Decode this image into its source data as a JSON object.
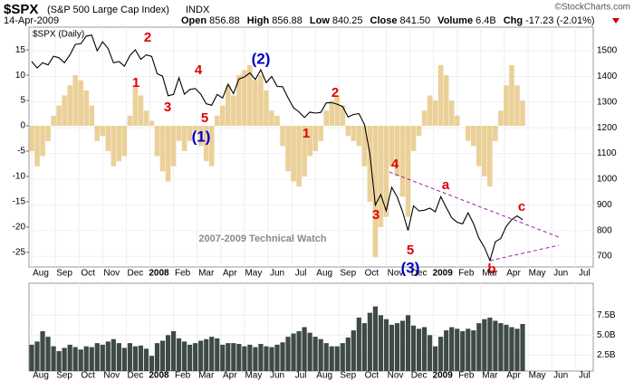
{
  "chart_data": {
    "type": "stock",
    "symbol": "$SPX",
    "name": "(S&P 500 Large Cap Index)",
    "exchange": "INDX",
    "copyright": "©StockCharts.com",
    "date": "14-Apr-2009",
    "quote": [
      {
        "label": "Open",
        "value": "856.88"
      },
      {
        "label": "High",
        "value": "856.88"
      },
      {
        "label": "Low",
        "value": "840.25"
      },
      {
        "label": "Close",
        "value": "841.50"
      },
      {
        "label": "Volume",
        "value": "6.4B"
      },
      {
        "label": "Chg",
        "value": "-17.23 (-2.01%)"
      }
    ],
    "price_legend": "$SPX (Daily)",
    "watermark": "2007-2009 Technical Watch",
    "xticks": [
      "Aug",
      "Sep",
      "Oct",
      "Nov",
      "Dec",
      "2008",
      "Feb",
      "Mar",
      "Apr",
      "May",
      "Jun",
      "Jul",
      "Aug",
      "Sep",
      "Oct",
      "Nov",
      "Dec",
      "2009",
      "Feb",
      "Mar",
      "Apr",
      "May",
      "Jun",
      "Jul"
    ],
    "ylim": [
      -27.9,
      19.5
    ],
    "yticks": [
      15,
      10,
      5,
      0,
      -5,
      -10,
      -15,
      -20,
      -25
    ],
    "y2lim": [
      658,
      1592
    ],
    "y2ticks": [
      1500,
      1400,
      1300,
      1200,
      1100,
      1000,
      900,
      800,
      700
    ],
    "vlim": [
      0.5,
      11.5
    ],
    "vticks": [
      {
        "value": 7.5,
        "label": "7.5B"
      },
      {
        "value": 5.0,
        "label": "5.0B"
      },
      {
        "value": 2.5,
        "label": "2.5B"
      }
    ],
    "series": [
      {
        "name": "Price",
        "axis": "y2",
        "color": "#000000",
        "values": [
          1458,
          1433,
          1453,
          1445,
          1479,
          1473,
          1453,
          1484,
          1525,
          1527,
          1557,
          1561,
          1500,
          1535,
          1509,
          1453,
          1458,
          1440,
          1481,
          1504,
          1467,
          1484,
          1478,
          1411,
          1401,
          1325,
          1330,
          1395,
          1331,
          1349,
          1353,
          1331,
          1294,
          1288,
          1330,
          1316,
          1370,
          1333,
          1390,
          1398,
          1414,
          1388,
          1426,
          1376,
          1400,
          1361,
          1360,
          1317,
          1278,
          1262,
          1240,
          1261,
          1257,
          1260,
          1297,
          1298,
          1292,
          1283,
          1242,
          1252,
          1255,
          1213,
          1099,
          899,
          940,
          877,
          968,
          931,
          873,
          800,
          896,
          876,
          879,
          887,
          873,
          932,
          890,
          850,
          832,
          826,
          869,
          827,
          770,
          735,
          683,
          756,
          769,
          816,
          842,
          857,
          842
        ]
      },
      {
        "name": "Oscillator",
        "axis": "y",
        "color": "#e8c987",
        "values": [
          -5,
          -8,
          -6,
          -3,
          2,
          4,
          6,
          8,
          10,
          9,
          7,
          4,
          -3,
          -2,
          -5,
          -8,
          -7,
          -6,
          2,
          8,
          6,
          3,
          1,
          -6,
          -9,
          -11,
          -8,
          -3,
          -5,
          -3,
          -1,
          -4,
          -7,
          -8,
          2,
          4,
          8,
          6,
          10,
          11,
          12,
          9,
          10,
          7,
          3,
          2,
          -4,
          -9,
          -11,
          -12,
          -10,
          -6,
          -5,
          -3,
          3,
          5,
          6,
          4,
          -2,
          -3,
          -4,
          -8,
          -15,
          -26,
          -20,
          -18,
          -8,
          -10,
          -14,
          -18,
          -5,
          -2,
          3,
          6,
          5,
          12,
          10,
          5,
          2,
          0,
          -3,
          -4,
          -8,
          -10,
          -12,
          -3,
          3,
          8,
          12,
          8,
          5
        ]
      },
      {
        "name": "Volume",
        "axis": "v",
        "color": "#3e4a45",
        "values": [
          3.8,
          4.2,
          5.5,
          4.8,
          3.6,
          3.0,
          3.4,
          3.8,
          3.5,
          3.2,
          3.6,
          3.5,
          4.0,
          3.8,
          4.2,
          4.5,
          4.0,
          3.4,
          4.0,
          3.6,
          3.7,
          3.3,
          2.4,
          4.0,
          4.3,
          5.0,
          5.5,
          4.6,
          4.2,
          3.8,
          4.0,
          4.3,
          4.5,
          4.8,
          4.6,
          3.8,
          4.0,
          4.0,
          3.9,
          3.6,
          3.8,
          3.5,
          3.9,
          3.6,
          3.5,
          3.8,
          4.1,
          4.8,
          5.2,
          5.5,
          6.0,
          5.3,
          4.8,
          4.5,
          4.0,
          3.6,
          3.6,
          4.0,
          4.7,
          5.6,
          7.2,
          6.5,
          7.8,
          8.6,
          7.5,
          7.0,
          6.3,
          6.5,
          6.8,
          7.5,
          6.2,
          5.8,
          6.0,
          5.0,
          3.6,
          4.8,
          5.6,
          6.0,
          5.8,
          5.5,
          5.8,
          5.6,
          6.5,
          7.0,
          7.2,
          6.8,
          6.5,
          6.3,
          6.0,
          5.8,
          6.4
        ]
      }
    ],
    "annotations": [
      {
        "text": "2",
        "color": "#e00000"
      },
      {
        "text": "1",
        "color": "#e00000"
      },
      {
        "text": "3",
        "color": "#e00000"
      },
      {
        "text": "4",
        "color": "#e00000"
      },
      {
        "text": "5",
        "color": "#e00000"
      },
      {
        "text": "(1)",
        "color": "#0000cc"
      },
      {
        "text": "(2)",
        "color": "#0000cc"
      },
      {
        "text": "1",
        "color": "#e00000"
      },
      {
        "text": "2",
        "color": "#e00000"
      },
      {
        "text": "3",
        "color": "#e00000"
      },
      {
        "text": "4",
        "color": "#e00000"
      },
      {
        "text": "5",
        "color": "#e00000"
      },
      {
        "text": "(3)",
        "color": "#0000cc"
      },
      {
        "text": "a",
        "color": "#e00000"
      },
      {
        "text": "b",
        "color": "#e00000"
      },
      {
        "text": "c",
        "color": "#e00000"
      }
    ]
  }
}
